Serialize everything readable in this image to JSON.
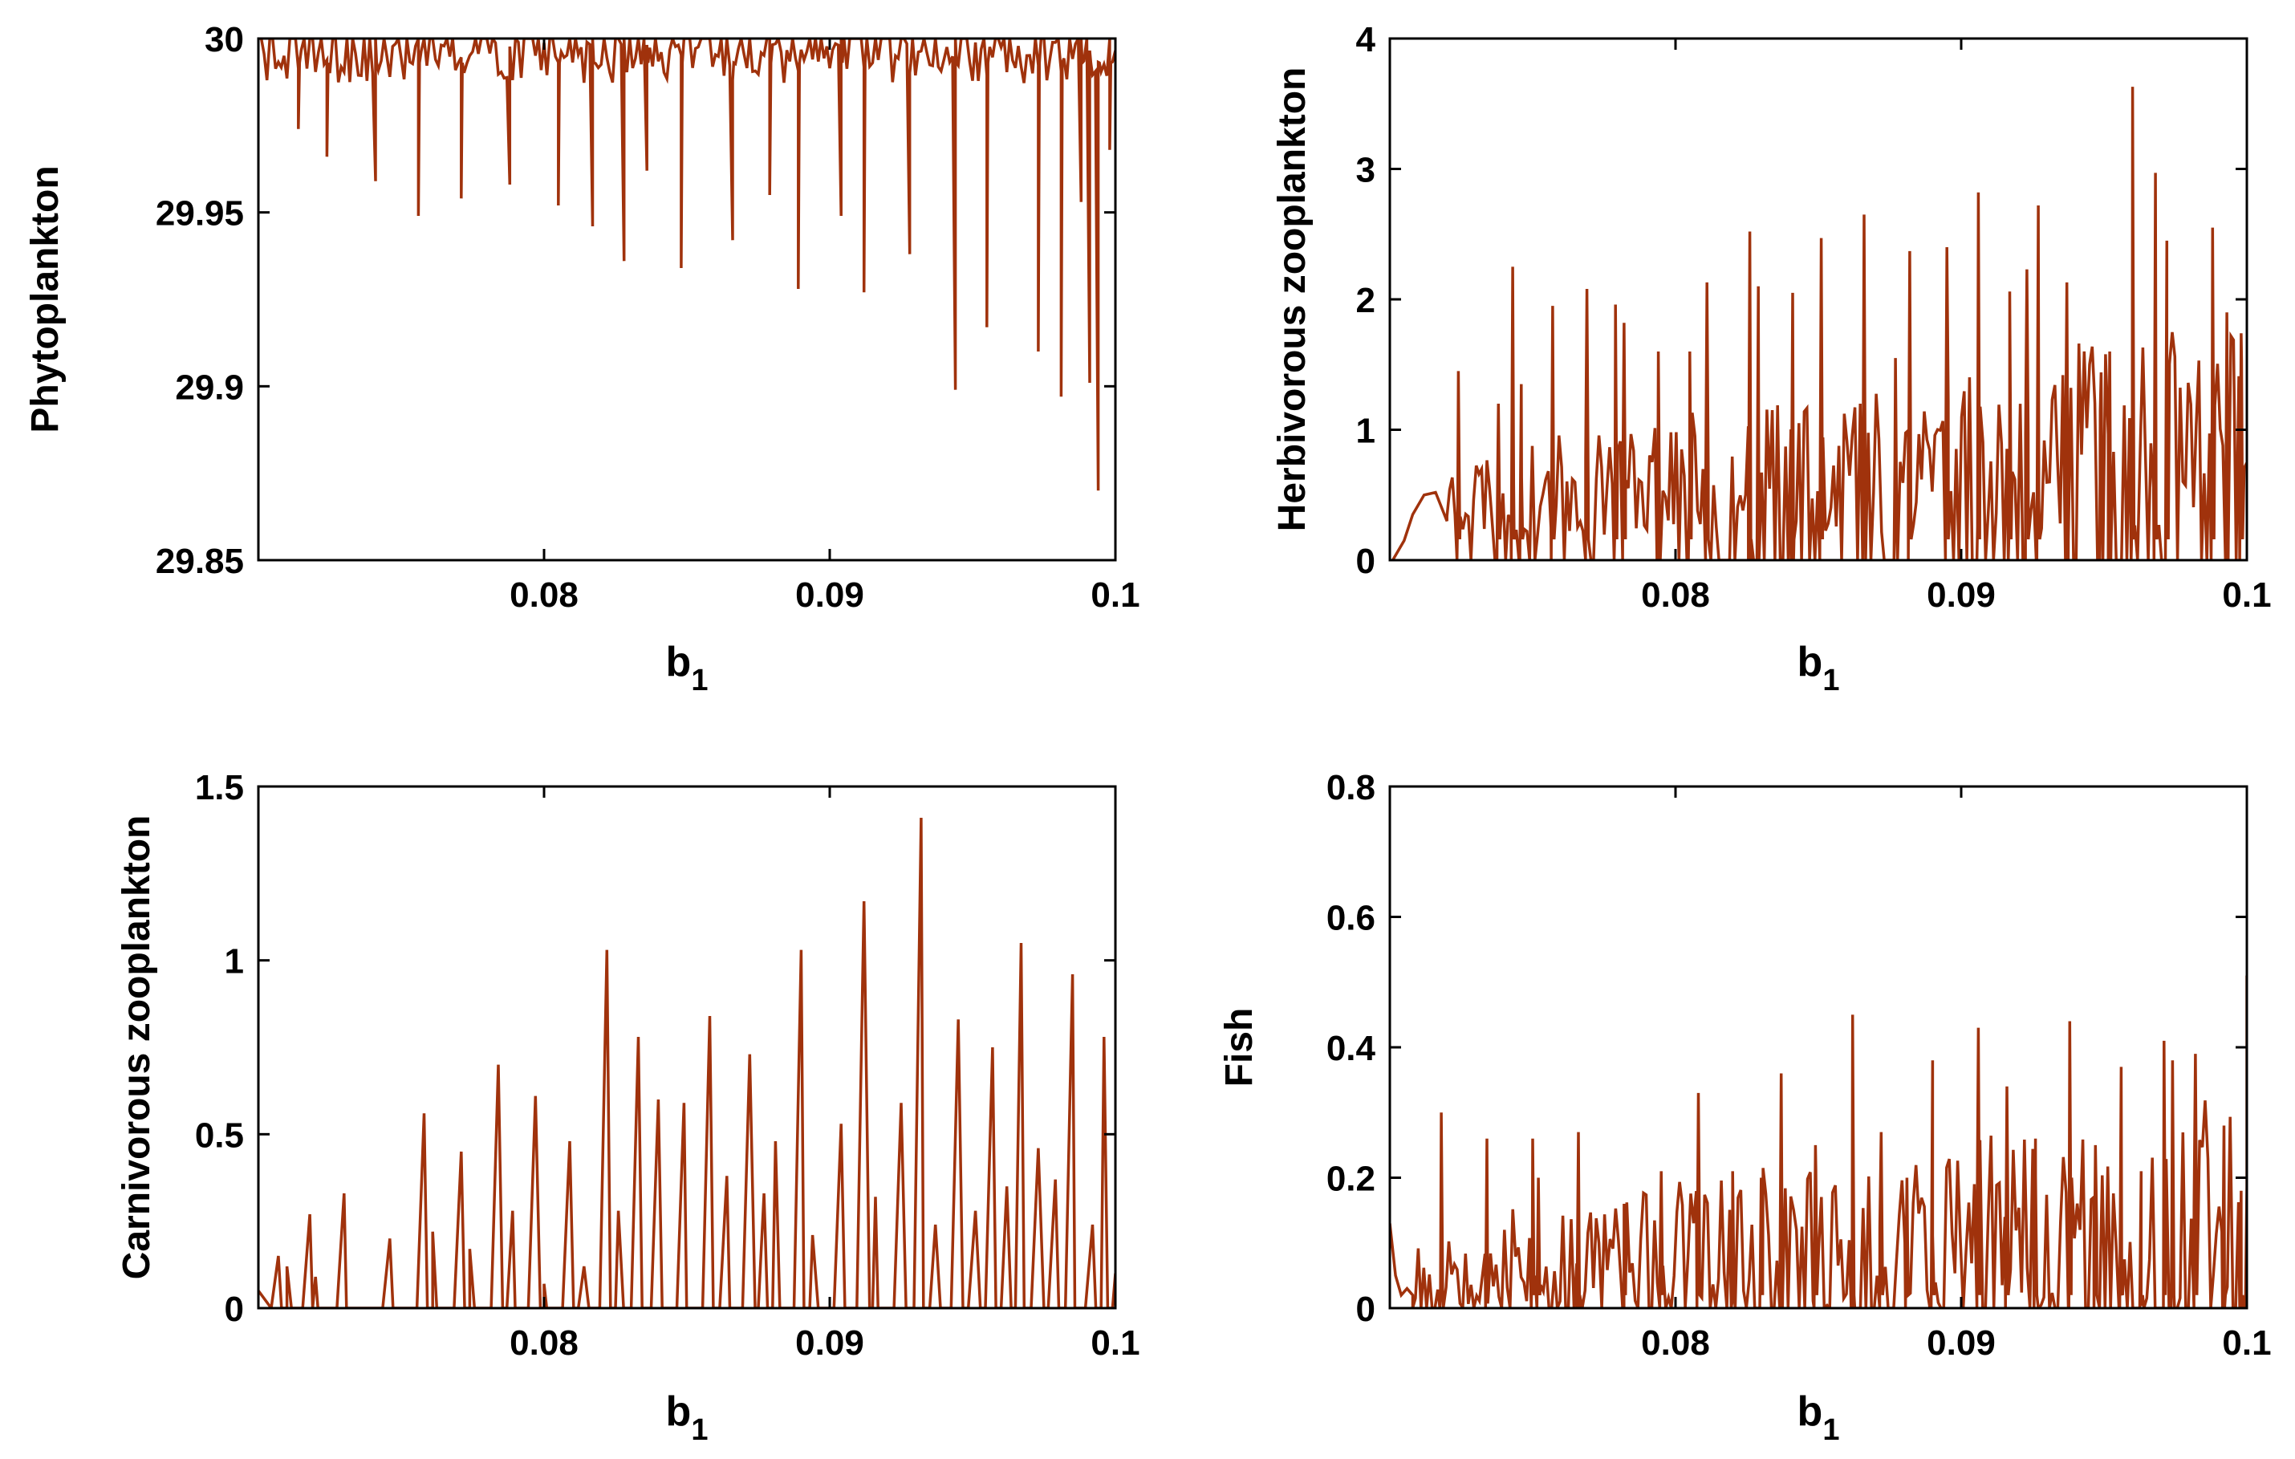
{
  "figure": {
    "series_color": "#a0320c"
  },
  "chart_data": [
    {
      "type": "line",
      "panel": "top-left",
      "ylabel": "Phytoplankton",
      "xlabel": "b",
      "xlabel_subscript": "1",
      "xlim": [
        0.07,
        0.1
      ],
      "ylim": [
        29.85,
        30
      ],
      "xticks": [
        0.08,
        0.09,
        0.1
      ],
      "xtick_labels": [
        "0.08",
        "0.09",
        "0.1"
      ],
      "yticks": [
        29.85,
        29.9,
        29.95,
        30
      ],
      "ytick_labels": [
        "29.85",
        "29.9",
        "29.95",
        "30"
      ],
      "grid": false,
      "series": [
        {
          "name": "Phytoplankton",
          "pattern": "spikes_down",
          "seed": 11,
          "points": 300,
          "base": 29.993,
          "base_jitter": 0.006,
          "baseline": 30.0,
          "spikes": [
            [
              0.0714,
              29.974
            ],
            [
              0.0724,
              29.966
            ],
            [
              0.0741,
              29.959
            ],
            [
              0.0756,
              29.949
            ],
            [
              0.0771,
              29.954
            ],
            [
              0.0788,
              29.958
            ],
            [
              0.0805,
              29.952
            ],
            [
              0.0817,
              29.946
            ],
            [
              0.0828,
              29.936
            ],
            [
              0.0836,
              29.962
            ],
            [
              0.0848,
              29.934
            ],
            [
              0.0866,
              29.942
            ],
            [
              0.0879,
              29.955
            ],
            [
              0.0889,
              29.928
            ],
            [
              0.0904,
              29.949
            ],
            [
              0.0912,
              29.927
            ],
            [
              0.0928,
              29.938
            ],
            [
              0.0944,
              29.899
            ],
            [
              0.0955,
              29.917
            ],
            [
              0.0973,
              29.91
            ],
            [
              0.0981,
              29.897
            ],
            [
              0.0988,
              29.953
            ],
            [
              0.0991,
              29.901
            ],
            [
              0.0994,
              29.87
            ],
            [
              0.0998,
              29.968
            ]
          ]
        }
      ]
    },
    {
      "type": "line",
      "panel": "top-right",
      "ylabel": "Herbivorous zooplankton",
      "xlabel": "b",
      "xlabel_subscript": "1",
      "xlim": [
        0.07,
        0.1
      ],
      "ylim": [
        0,
        4
      ],
      "xticks": [
        0.08,
        0.09,
        0.1
      ],
      "xtick_labels": [
        "0.08",
        "0.09",
        "0.1"
      ],
      "yticks": [
        0,
        1,
        2,
        3,
        4
      ],
      "ytick_labels": [
        "0",
        "1",
        "2",
        "3",
        "4"
      ],
      "grid": false,
      "series": [
        {
          "name": "Herbivorous zooplankton",
          "pattern": "noisy_up",
          "seed": 23,
          "points": 300,
          "low": 0.0,
          "mid_start": 0.4,
          "mid_end": 0.9,
          "jitter": 0.55,
          "baseline": 0.0,
          "start": [
            [
              0.0701,
              0.0
            ],
            [
              0.0705,
              0.15
            ],
            [
              0.0708,
              0.35
            ],
            [
              0.0712,
              0.5
            ],
            [
              0.0716,
              0.52
            ],
            [
              0.072,
              0.3
            ]
          ],
          "spikes": [
            [
              0.0724,
              1.45
            ],
            [
              0.0738,
              1.2
            ],
            [
              0.0743,
              2.25
            ],
            [
              0.0746,
              1.35
            ],
            [
              0.0757,
              1.95
            ],
            [
              0.0769,
              2.08
            ],
            [
              0.0779,
              1.96
            ],
            [
              0.0782,
              1.82
            ],
            [
              0.0794,
              1.6
            ],
            [
              0.0805,
              1.6
            ],
            [
              0.0811,
              2.13
            ],
            [
              0.0826,
              2.52
            ],
            [
              0.0829,
              2.1
            ],
            [
              0.0841,
              2.05
            ],
            [
              0.0851,
              2.47
            ],
            [
              0.0866,
              2.65
            ],
            [
              0.0877,
              1.55
            ],
            [
              0.0882,
              2.37
            ],
            [
              0.0895,
              2.4
            ],
            [
              0.0906,
              2.82
            ],
            [
              0.0917,
              2.06
            ],
            [
              0.0923,
              2.23
            ],
            [
              0.0927,
              2.72
            ],
            [
              0.0937,
              2.13
            ],
            [
              0.0949,
              1.44
            ],
            [
              0.0952,
              1.6
            ],
            [
              0.096,
              3.63
            ],
            [
              0.0968,
              2.97
            ],
            [
              0.0972,
              2.45
            ],
            [
              0.0988,
              2.55
            ],
            [
              0.0993,
              1.9
            ],
            [
              0.0998,
              1.74
            ]
          ]
        }
      ]
    },
    {
      "type": "line",
      "panel": "bottom-left",
      "ylabel": "Carnivorous zooplankton",
      "xlabel": "b",
      "xlabel_subscript": "1",
      "xlim": [
        0.07,
        0.1
      ],
      "ylim": [
        0,
        1.5
      ],
      "xticks": [
        0.08,
        0.09,
        0.1
      ],
      "xtick_labels": [
        "0.08",
        "0.09",
        "0.1"
      ],
      "yticks": [
        0,
        0.5,
        1,
        1.5
      ],
      "ytick_labels": [
        "0",
        "0.5",
        "1",
        "1.5"
      ],
      "grid": false,
      "series": [
        {
          "name": "Carnivorous zooplankton",
          "pattern": "spikes_up",
          "seed": 37,
          "baseline": 0.0,
          "spikes": [
            [
              0.0707,
              0.15
            ],
            [
              0.071,
              0.12
            ],
            [
              0.0718,
              0.27
            ],
            [
              0.072,
              0.09
            ],
            [
              0.073,
              0.33
            ],
            [
              0.0746,
              0.2
            ],
            [
              0.0758,
              0.56
            ],
            [
              0.0761,
              0.22
            ],
            [
              0.0771,
              0.45
            ],
            [
              0.0774,
              0.17
            ],
            [
              0.0784,
              0.7
            ],
            [
              0.0789,
              0.28
            ],
            [
              0.0797,
              0.61
            ],
            [
              0.08,
              0.07
            ],
            [
              0.0809,
              0.48
            ],
            [
              0.0814,
              0.12
            ],
            [
              0.0822,
              1.03
            ],
            [
              0.0826,
              0.28
            ],
            [
              0.0833,
              0.78
            ],
            [
              0.084,
              0.6
            ],
            [
              0.0849,
              0.59
            ],
            [
              0.0858,
              0.84
            ],
            [
              0.0864,
              0.38
            ],
            [
              0.0872,
              0.73
            ],
            [
              0.0877,
              0.33
            ],
            [
              0.0881,
              0.48
            ],
            [
              0.089,
              1.03
            ],
            [
              0.0894,
              0.21
            ],
            [
              0.0904,
              0.53
            ],
            [
              0.0912,
              1.17
            ],
            [
              0.0916,
              0.32
            ],
            [
              0.0925,
              0.59
            ],
            [
              0.0932,
              1.41
            ],
            [
              0.0937,
              0.24
            ],
            [
              0.0945,
              0.83
            ],
            [
              0.0951,
              0.28
            ],
            [
              0.0957,
              0.75
            ],
            [
              0.0962,
              0.35
            ],
            [
              0.0967,
              1.05
            ],
            [
              0.0973,
              0.46
            ],
            [
              0.0979,
              0.37
            ],
            [
              0.0985,
              0.96
            ],
            [
              0.0992,
              0.24
            ],
            [
              0.0996,
              0.78
            ],
            [
              0.1,
              0.1
            ]
          ]
        }
      ]
    },
    {
      "type": "line",
      "panel": "bottom-right",
      "ylabel": "Fish",
      "xlabel": "b",
      "xlabel_subscript": "1",
      "xlim": [
        0.07,
        0.1
      ],
      "ylim": [
        0,
        0.8
      ],
      "xticks": [
        0.08,
        0.09,
        0.1
      ],
      "xtick_labels": [
        "0.08",
        "0.09",
        "0.1"
      ],
      "yticks": [
        0,
        0.2,
        0.4,
        0.6,
        0.8
      ],
      "ytick_labels": [
        "0",
        "0.2",
        "0.4",
        "0.6",
        "0.8"
      ],
      "grid": false,
      "series": [
        {
          "name": "Fish",
          "pattern": "noisy_up",
          "seed": 53,
          "points": 300,
          "low": 0.0,
          "mid_start": 0.05,
          "mid_end": 0.12,
          "jitter": 0.12,
          "baseline": 0.0,
          "start": [
            [
              0.07,
              0.13
            ],
            [
              0.0702,
              0.05
            ],
            [
              0.0704,
              0.02
            ],
            [
              0.0706,
              0.03
            ],
            [
              0.0708,
              0.02
            ]
          ],
          "spikes": [
            [
              0.0718,
              0.3
            ],
            [
              0.0734,
              0.26
            ],
            [
              0.075,
              0.26
            ],
            [
              0.0752,
              0.2
            ],
            [
              0.0766,
              0.27
            ],
            [
              0.0782,
              0.16
            ],
            [
              0.0795,
              0.21
            ],
            [
              0.0808,
              0.33
            ],
            [
              0.082,
              0.21
            ],
            [
              0.083,
              0.2
            ],
            [
              0.0837,
              0.36
            ],
            [
              0.0849,
              0.25
            ],
            [
              0.0862,
              0.45
            ],
            [
              0.0872,
              0.27
            ],
            [
              0.0881,
              0.2
            ],
            [
              0.089,
              0.38
            ],
            [
              0.0906,
              0.43
            ],
            [
              0.0916,
              0.34
            ],
            [
              0.0926,
              0.26
            ],
            [
              0.0938,
              0.44
            ],
            [
              0.0947,
              0.25
            ],
            [
              0.0956,
              0.37
            ],
            [
              0.0963,
              0.21
            ],
            [
              0.0971,
              0.41
            ],
            [
              0.0974,
              0.38
            ],
            [
              0.0982,
              0.39
            ],
            [
              0.0992,
              0.28
            ],
            [
              0.0998,
              0.18
            ],
            [
              0.1,
              0.51
            ]
          ]
        }
      ]
    }
  ]
}
